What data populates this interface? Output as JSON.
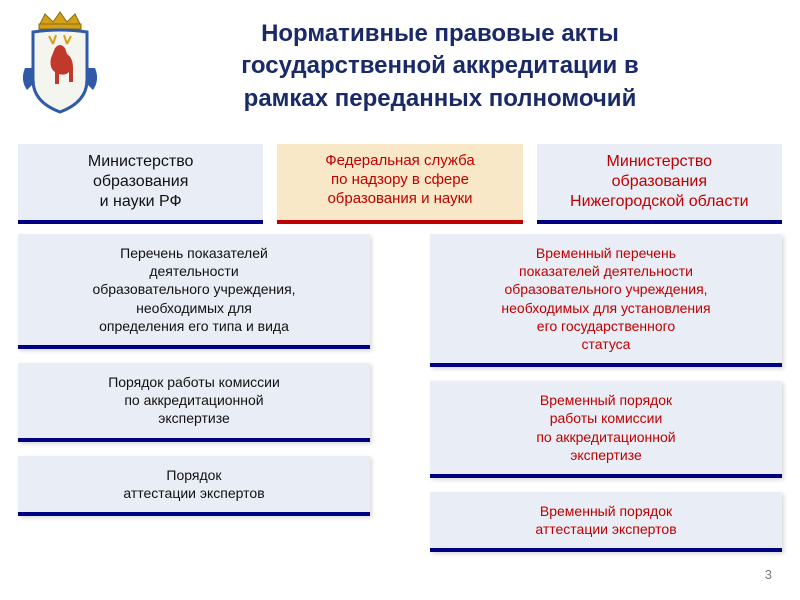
{
  "background_color": "#ffffff",
  "title": {
    "lines": [
      "Нормативные правовые акты",
      "государственной аккредитации в",
      "рамках переданных полномочий"
    ],
    "color": "#1a2a68",
    "fontsize": 24,
    "font_weight": "bold"
  },
  "page_number": "3",
  "header_boxes": [
    {
      "lines": [
        "Министерство",
        "образования",
        "и науки РФ"
      ],
      "bg": "#e9edf5",
      "border": "#000080",
      "text_color": "#111111",
      "fontsize": 16
    },
    {
      "lines": [
        "Федеральная служба",
        "по надзору в сфере",
        "образования и науки"
      ],
      "bg": "#f9e8c8",
      "border": "#c00000",
      "text_color": "#c00000",
      "fontsize": 15
    },
    {
      "lines": [
        "Министерство",
        "образования",
        "Нижегородской области"
      ],
      "bg": "#e9edf5",
      "border": "#000080",
      "text_color": "#c00000",
      "fontsize": 16
    }
  ],
  "columns": {
    "left": [
      {
        "lines": [
          "Перечень показателей",
          "деятельности",
          "образовательного учреждения,",
          "необходимых для",
          "определения его типа и вида"
        ],
        "bg": "#e9edf5",
        "border": "#000080",
        "text_color": "#111111",
        "fontsize": 14
      },
      {
        "lines": [
          "Порядок работы комиссии",
          "по аккредитационной",
          "экспертизе"
        ],
        "bg": "#e9edf5",
        "border": "#000080",
        "text_color": "#111111",
        "fontsize": 14
      },
      {
        "lines": [
          "Порядок",
          "аттестации экспертов"
        ],
        "bg": "#e9edf5",
        "border": "#000080",
        "text_color": "#111111",
        "fontsize": 14
      }
    ],
    "right": [
      {
        "lines": [
          "Временный перечень",
          "показателей деятельности",
          "образовательного учреждения,",
          "необходимых для установления",
          "его государственного",
          "статуса"
        ],
        "bg": "#e9edf5",
        "border": "#000080",
        "text_color": "#c00000",
        "fontsize": 14
      },
      {
        "lines": [
          "Временный порядок",
          "работы комиссии",
          "по аккредитационной",
          "экспертизе"
        ],
        "bg": "#e9edf5",
        "border": "#000080",
        "text_color": "#c00000",
        "fontsize": 14
      },
      {
        "lines": [
          "Временный порядок",
          "аттестации экспертов"
        ],
        "bg": "#e9edf5",
        "border": "#000080",
        "text_color": "#c00000",
        "fontsize": 14
      }
    ]
  },
  "coat_of_arms": {
    "crown_color": "#d4a017",
    "shield_bg": "#f5f5f0",
    "ribbon_color": "#2e5aa8",
    "antler_color": "#d4a017",
    "deer_color": "#c0392b"
  }
}
